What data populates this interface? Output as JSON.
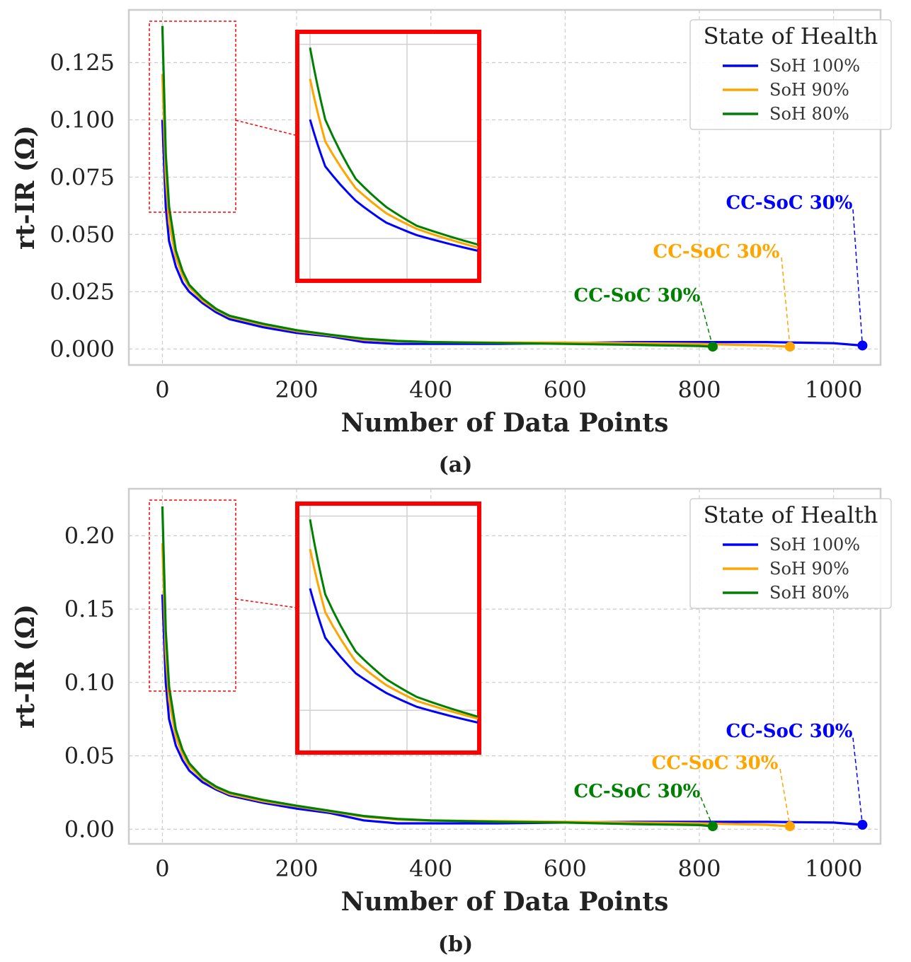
{
  "colors": {
    "soh100": "#0000ff",
    "soh90": "#ffa500",
    "soh80": "#008000",
    "zoom": "#ff0000",
    "grid": "#cccccc",
    "frame": "#cccccc"
  },
  "chart_data": [
    {
      "type": "line",
      "caption": "(a)",
      "xlabel": "Number of Data Points",
      "ylabel": "rt-IR (Ω)",
      "xlim": [
        -50,
        1070
      ],
      "ylim": [
        -0.007,
        0.148
      ],
      "xticks": [
        0,
        200,
        400,
        600,
        800,
        1000
      ],
      "xtick_labels": [
        "0",
        "200",
        "400",
        "600",
        "800",
        "1000"
      ],
      "yticks": [
        0,
        0.025,
        0.05,
        0.075,
        0.1,
        0.125
      ],
      "ytick_labels": [
        "0.000",
        "0.025",
        "0.050",
        "0.075",
        "0.100",
        "0.125"
      ],
      "grid": true,
      "legend": {
        "title": "State of Health",
        "position": "top-right"
      },
      "series": [
        {
          "name": "SoH 100%",
          "color": "#0000ff",
          "x": [
            0,
            5,
            10,
            20,
            30,
            40,
            60,
            80,
            100,
            150,
            200,
            250,
            300,
            350,
            400,
            500,
            600,
            700,
            800,
            900,
            1000,
            1043
          ],
          "y": [
            0.1,
            0.062,
            0.047,
            0.036,
            0.029,
            0.025,
            0.02,
            0.016,
            0.013,
            0.0095,
            0.007,
            0.0055,
            0.003,
            0.0022,
            0.0022,
            0.0022,
            0.0025,
            0.003,
            0.003,
            0.003,
            0.0025,
            0.0015
          ],
          "end_label": "CC-SoC 30%"
        },
        {
          "name": "SoH 90%",
          "color": "#ffa500",
          "x": [
            0,
            5,
            10,
            20,
            30,
            40,
            60,
            80,
            100,
            150,
            200,
            250,
            300,
            350,
            400,
            500,
            600,
            700,
            800,
            900,
            935
          ],
          "y": [
            0.12,
            0.075,
            0.055,
            0.04,
            0.032,
            0.027,
            0.021,
            0.017,
            0.014,
            0.0105,
            0.0078,
            0.006,
            0.004,
            0.0033,
            0.003,
            0.0028,
            0.0028,
            0.0025,
            0.0022,
            0.0015,
            0.001
          ],
          "end_label": "CC-SoC 30%"
        },
        {
          "name": "SoH 80%",
          "color": "#008000",
          "x": [
            0,
            5,
            10,
            20,
            30,
            40,
            60,
            80,
            100,
            150,
            200,
            250,
            300,
            350,
            400,
            500,
            600,
            700,
            800,
            820
          ],
          "y": [
            0.141,
            0.085,
            0.062,
            0.043,
            0.034,
            0.028,
            0.022,
            0.0175,
            0.0145,
            0.011,
            0.0082,
            0.0062,
            0.0045,
            0.0035,
            0.003,
            0.0026,
            0.0022,
            0.0018,
            0.0013,
            0.001
          ],
          "end_label": "CC-SoC 30%"
        }
      ]
    },
    {
      "type": "line",
      "caption": "(b)",
      "xlabel": "Number of Data Points",
      "ylabel": "rt-IR (Ω)",
      "xlim": [
        -50,
        1070
      ],
      "ylim": [
        -0.01,
        0.232
      ],
      "xticks": [
        0,
        200,
        400,
        600,
        800,
        1000
      ],
      "xtick_labels": [
        "0",
        "200",
        "400",
        "600",
        "800",
        "1000"
      ],
      "yticks": [
        0,
        0.05,
        0.1,
        0.15,
        0.2
      ],
      "ytick_labels": [
        "0.00",
        "0.05",
        "0.10",
        "0.15",
        "0.20"
      ],
      "grid": true,
      "legend": {
        "title": "State of Health",
        "position": "top-right"
      },
      "series": [
        {
          "name": "SoH 100%",
          "color": "#0000ff",
          "x": [
            0,
            5,
            10,
            20,
            30,
            40,
            60,
            80,
            100,
            150,
            200,
            250,
            300,
            350,
            400,
            500,
            600,
            700,
            800,
            900,
            1000,
            1043
          ],
          "y": [
            0.16,
            0.1,
            0.075,
            0.057,
            0.047,
            0.04,
            0.032,
            0.027,
            0.023,
            0.018,
            0.014,
            0.011,
            0.006,
            0.004,
            0.004,
            0.004,
            0.0045,
            0.005,
            0.005,
            0.005,
            0.0045,
            0.003
          ],
          "end_label": "CC-SoC 30%"
        },
        {
          "name": "SoH 90%",
          "color": "#ffa500",
          "x": [
            0,
            5,
            10,
            20,
            30,
            40,
            60,
            80,
            100,
            150,
            200,
            250,
            300,
            350,
            400,
            500,
            600,
            700,
            800,
            900,
            935
          ],
          "y": [
            0.195,
            0.12,
            0.088,
            0.063,
            0.051,
            0.043,
            0.034,
            0.028,
            0.024,
            0.019,
            0.0155,
            0.012,
            0.0085,
            0.0065,
            0.0058,
            0.0055,
            0.005,
            0.0045,
            0.004,
            0.003,
            0.002
          ],
          "end_label": "CC-SoC 30%"
        },
        {
          "name": "SoH 80%",
          "color": "#008000",
          "x": [
            0,
            5,
            10,
            20,
            30,
            40,
            60,
            80,
            100,
            150,
            200,
            250,
            300,
            350,
            400,
            500,
            600,
            700,
            800,
            820
          ],
          "y": [
            0.22,
            0.135,
            0.097,
            0.068,
            0.054,
            0.045,
            0.035,
            0.029,
            0.025,
            0.02,
            0.016,
            0.0125,
            0.009,
            0.007,
            0.006,
            0.005,
            0.0045,
            0.0035,
            0.0028,
            0.002
          ],
          "end_label": "CC-SoC 30%"
        }
      ]
    }
  ]
}
